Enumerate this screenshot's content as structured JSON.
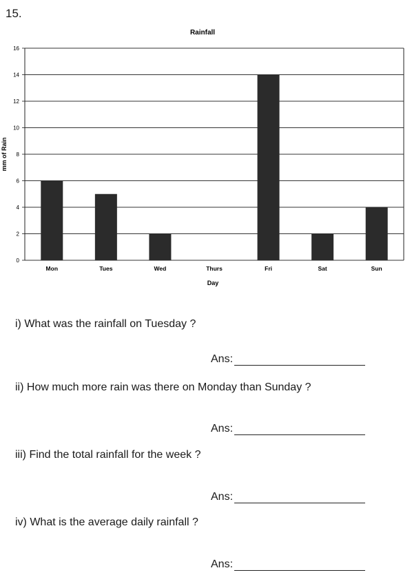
{
  "question_number": "15.",
  "chart_data": {
    "type": "bar",
    "title": "Rainfall",
    "xlabel": "Day",
    "ylabel": "mm of Rain",
    "categories": [
      "Mon",
      "Tues",
      "Wed",
      "Thurs",
      "Fri",
      "Sat",
      "Sun"
    ],
    "values": [
      6,
      5,
      2,
      0,
      14,
      2,
      4
    ],
    "ylim": [
      0,
      16
    ],
    "yticks": [
      0,
      2,
      4,
      6,
      8,
      10,
      12,
      14,
      16
    ],
    "grid": true,
    "bar_color": "#2b2b2b"
  },
  "questions": [
    {
      "text": "i) What was the rainfall on Tuesday ?",
      "ans_label": "Ans:"
    },
    {
      "text": "ii) How much more rain was there on Monday than Sunday ?",
      "ans_label": "Ans:"
    },
    {
      "text": "iii) Find the total rainfall for the week ?",
      "ans_label": "Ans:"
    },
    {
      "text": "iv) What is the average daily rainfall ?",
      "ans_label": "Ans:"
    }
  ]
}
